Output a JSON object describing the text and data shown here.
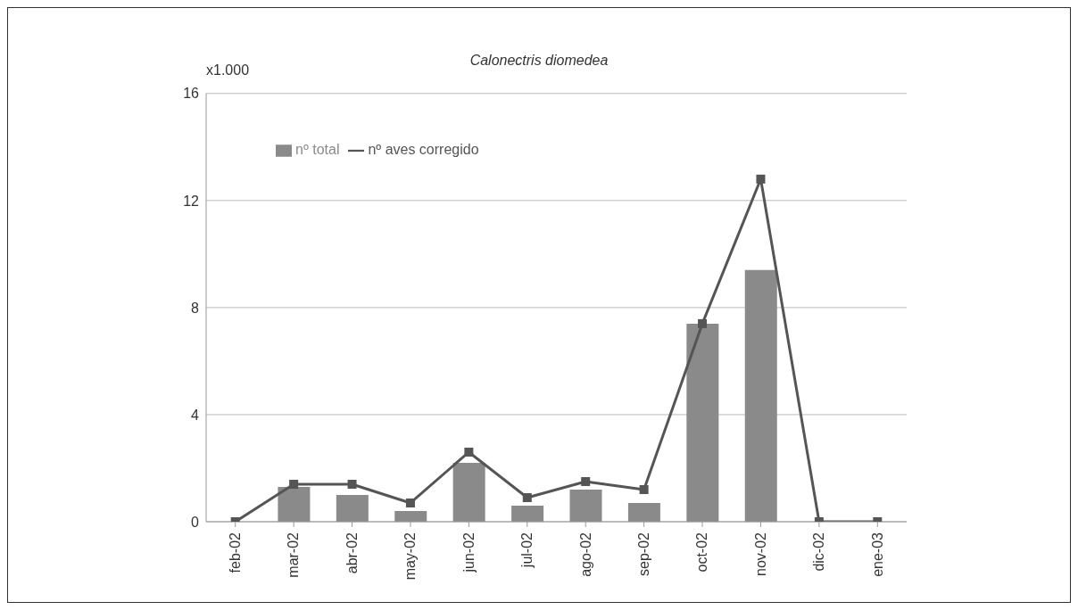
{
  "chart_data": {
    "type": "bar",
    "title": "Calonectris diomedea",
    "ylabel": "x1.000",
    "categories": [
      "feb-02",
      "mar-02",
      "abr-02",
      "may-02",
      "jun-02",
      "jul-02",
      "ago-02",
      "sep-02",
      "oct-02",
      "nov-02",
      "dic-02",
      "ene-03"
    ],
    "series": [
      {
        "name": "nº total",
        "color": "#8a8a8a",
        "values": [
          0,
          1.3,
          1.0,
          0.4,
          2.2,
          0.6,
          1.2,
          0.7,
          7.4,
          9.4,
          0,
          0
        ]
      },
      {
        "name": "nº aves corregido",
        "type": "line",
        "color": "#555555",
        "marker": "square",
        "values": [
          0,
          1.4,
          1.4,
          0.7,
          2.6,
          0.9,
          1.5,
          1.2,
          7.4,
          12.8,
          0,
          0
        ]
      }
    ],
    "ylim": [
      0,
      16
    ],
    "yticks": [
      0,
      4,
      8,
      12,
      16
    ],
    "grid": "y",
    "legend": "top left"
  }
}
